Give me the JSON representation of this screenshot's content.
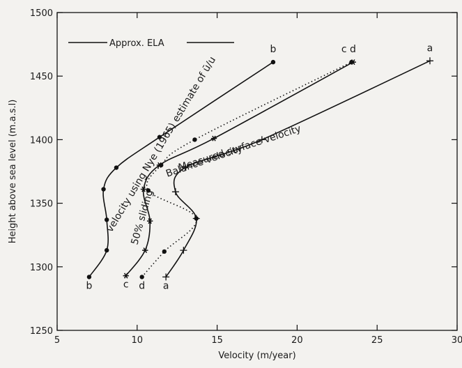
{
  "chart_data": {
    "type": "line",
    "xlabel": "Velocity (m/year)",
    "ylabel": "Height above sea level (m.a.s.l)",
    "xlim": [
      5,
      30
    ],
    "ylim": [
      1250,
      1500
    ],
    "xticks": [
      5,
      10,
      15,
      20,
      25,
      30
    ],
    "yticks": [
      1250,
      1300,
      1350,
      1400,
      1450,
      1500
    ],
    "grid": false,
    "legend": {
      "label": "Approx. ELA",
      "placement": "top-left"
    },
    "series": [
      {
        "id": "b",
        "start_label": "b",
        "end_label": "b",
        "curve_label": "velocity using Nye (1965) estimate of ū/u",
        "line_style": "solid",
        "marker": "dot",
        "points": [
          [
            7.0,
            1292
          ],
          [
            8.1,
            1313
          ],
          [
            8.1,
            1337
          ],
          [
            7.9,
            1361
          ],
          [
            8.7,
            1378
          ],
          [
            11.4,
            1402
          ],
          [
            18.5,
            1461
          ]
        ]
      },
      {
        "id": "c",
        "start_label": "c",
        "end_label": "c",
        "curve_label": "50% sliding",
        "line_style": "solid",
        "marker": "star",
        "points": [
          [
            9.3,
            1293
          ],
          [
            10.5,
            1313
          ],
          [
            10.8,
            1336
          ],
          [
            10.4,
            1361
          ],
          [
            11.4,
            1380
          ],
          [
            14.8,
            1401
          ],
          [
            23.5,
            1461
          ]
        ]
      },
      {
        "id": "d",
        "start_label": "d",
        "end_label": "d",
        "curve_label": "Balance velocity",
        "line_style": "dotted",
        "marker": "dot",
        "points": [
          [
            10.3,
            1292
          ],
          [
            11.7,
            1312
          ],
          [
            13.7,
            1338
          ],
          [
            10.7,
            1360
          ],
          [
            11.5,
            1380
          ],
          [
            13.6,
            1400
          ],
          [
            23.4,
            1461
          ]
        ]
      },
      {
        "id": "a",
        "start_label": "a",
        "end_label": "a",
        "curve_label": "Measured surface velocity",
        "line_style": "solid",
        "marker": "plus",
        "points": [
          [
            11.8,
            1292
          ],
          [
            12.9,
            1313
          ],
          [
            13.7,
            1338
          ],
          [
            12.4,
            1359
          ],
          [
            13.0,
            1378
          ],
          [
            17.8,
            1400
          ],
          [
            28.3,
            1462
          ]
        ]
      }
    ]
  }
}
